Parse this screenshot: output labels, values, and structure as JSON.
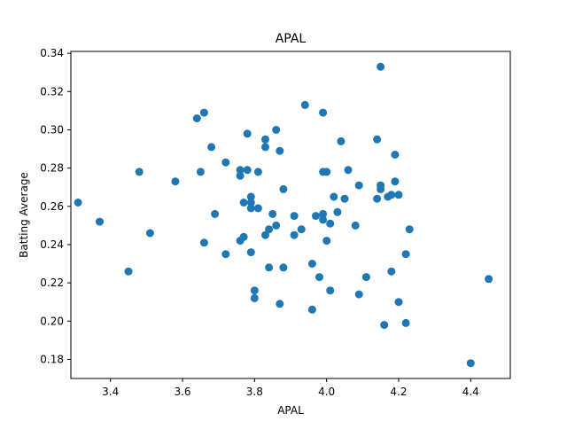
{
  "chart_data": {
    "type": "scatter",
    "title": "APAL",
    "xlabel": "APAL",
    "ylabel": "Batting Average",
    "xlim": [
      3.29,
      4.51
    ],
    "ylim": [
      0.17,
      0.341
    ],
    "xticks": [
      3.4,
      3.6,
      3.8,
      4.0,
      4.2,
      4.4
    ],
    "xtick_labels": [
      "3.4",
      "3.6",
      "3.8",
      "4.0",
      "4.2",
      "4.4"
    ],
    "yticks": [
      0.18,
      0.2,
      0.22,
      0.24,
      0.26,
      0.28,
      0.3,
      0.32,
      0.34
    ],
    "ytick_labels": [
      "0.18",
      "0.20",
      "0.22",
      "0.24",
      "0.26",
      "0.28",
      "0.30",
      "0.32",
      "0.34"
    ],
    "grid": false,
    "marker_color": "#1f77b4",
    "points": [
      [
        3.31,
        0.262
      ],
      [
        3.37,
        0.252
      ],
      [
        3.45,
        0.226
      ],
      [
        3.48,
        0.278
      ],
      [
        3.51,
        0.246
      ],
      [
        3.58,
        0.273
      ],
      [
        3.64,
        0.306
      ],
      [
        3.65,
        0.278
      ],
      [
        3.66,
        0.309
      ],
      [
        3.66,
        0.241
      ],
      [
        3.68,
        0.291
      ],
      [
        3.69,
        0.256
      ],
      [
        3.72,
        0.283
      ],
      [
        3.72,
        0.235
      ],
      [
        3.76,
        0.276
      ],
      [
        3.76,
        0.279
      ],
      [
        3.77,
        0.262
      ],
      [
        3.77,
        0.244
      ],
      [
        3.76,
        0.242
      ],
      [
        3.78,
        0.298
      ],
      [
        3.78,
        0.279
      ],
      [
        3.79,
        0.265
      ],
      [
        3.79,
        0.262
      ],
      [
        3.79,
        0.259
      ],
      [
        3.79,
        0.236
      ],
      [
        3.8,
        0.216
      ],
      [
        3.8,
        0.212
      ],
      [
        3.81,
        0.278
      ],
      [
        3.81,
        0.259
      ],
      [
        3.83,
        0.295
      ],
      [
        3.83,
        0.291
      ],
      [
        3.83,
        0.245
      ],
      [
        3.84,
        0.248
      ],
      [
        3.84,
        0.228
      ],
      [
        3.85,
        0.256
      ],
      [
        3.86,
        0.3
      ],
      [
        3.86,
        0.25
      ],
      [
        3.87,
        0.289
      ],
      [
        3.87,
        0.209
      ],
      [
        3.88,
        0.269
      ],
      [
        3.88,
        0.228
      ],
      [
        3.91,
        0.255
      ],
      [
        3.91,
        0.245
      ],
      [
        3.93,
        0.248
      ],
      [
        3.94,
        0.313
      ],
      [
        3.96,
        0.23
      ],
      [
        3.96,
        0.206
      ],
      [
        3.97,
        0.255
      ],
      [
        3.98,
        0.223
      ],
      [
        3.99,
        0.309
      ],
      [
        3.99,
        0.278
      ],
      [
        3.99,
        0.256
      ],
      [
        3.99,
        0.253
      ],
      [
        4.0,
        0.278
      ],
      [
        4.0,
        0.242
      ],
      [
        4.01,
        0.251
      ],
      [
        4.01,
        0.216
      ],
      [
        4.02,
        0.265
      ],
      [
        4.03,
        0.257
      ],
      [
        4.04,
        0.294
      ],
      [
        4.05,
        0.264
      ],
      [
        4.06,
        0.279
      ],
      [
        4.08,
        0.25
      ],
      [
        4.09,
        0.271
      ],
      [
        4.09,
        0.214
      ],
      [
        4.11,
        0.223
      ],
      [
        4.14,
        0.295
      ],
      [
        4.14,
        0.264
      ],
      [
        4.15,
        0.271
      ],
      [
        4.15,
        0.269
      ],
      [
        4.15,
        0.333
      ],
      [
        4.16,
        0.198
      ],
      [
        4.17,
        0.265
      ],
      [
        4.18,
        0.266
      ],
      [
        4.18,
        0.226
      ],
      [
        4.19,
        0.287
      ],
      [
        4.19,
        0.273
      ],
      [
        4.2,
        0.266
      ],
      [
        4.2,
        0.21
      ],
      [
        4.22,
        0.235
      ],
      [
        4.22,
        0.199
      ],
      [
        4.23,
        0.248
      ],
      [
        4.4,
        0.178
      ],
      [
        4.45,
        0.222
      ]
    ]
  }
}
